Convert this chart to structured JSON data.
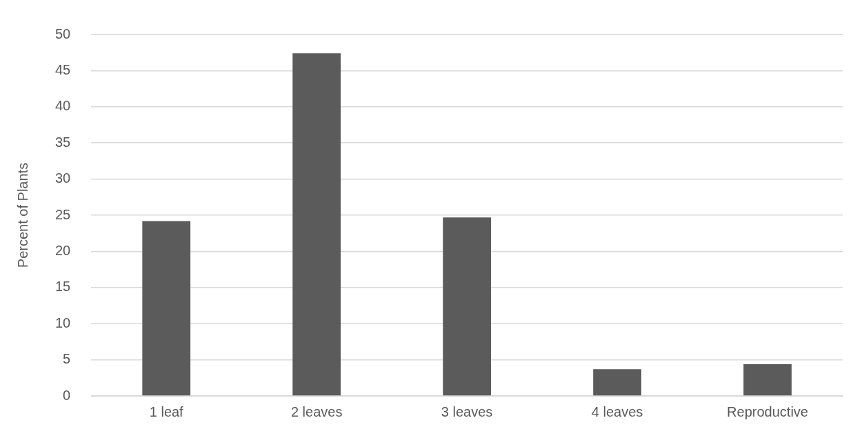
{
  "chart_data": {
    "type": "bar",
    "ylabel": "Percent of Plants",
    "categories": [
      "1 leaf",
      "2 leaves",
      "3 leaves",
      "4 leaves",
      "Reproductive"
    ],
    "values": [
      24.2,
      47.4,
      24.7,
      3.7,
      4.4
    ],
    "color": "#5b5b5b",
    "ylim": [
      0,
      50
    ],
    "yticks": [
      0,
      5,
      10,
      15,
      20,
      25,
      30,
      35,
      40,
      45,
      50
    ],
    "grid": "y",
    "legend": false
  }
}
